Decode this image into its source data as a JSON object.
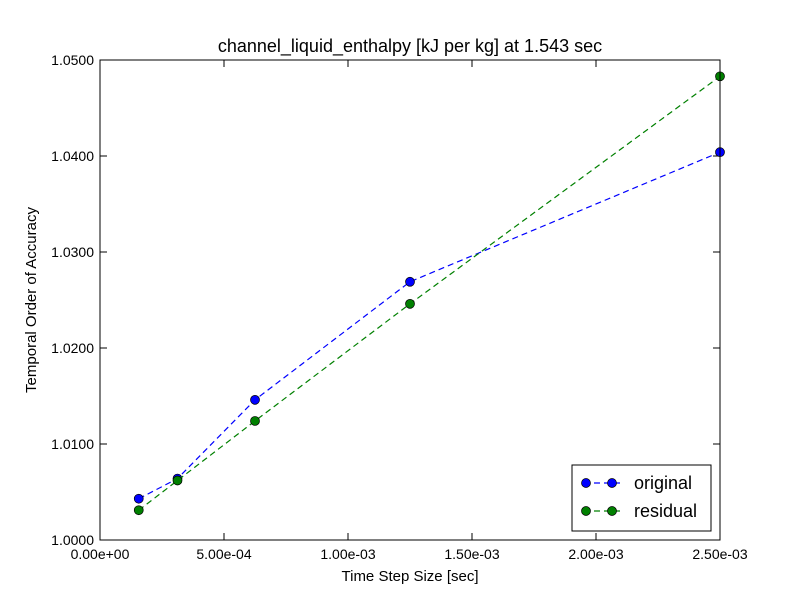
{
  "chart_data": {
    "type": "line",
    "title": "channel_liquid_enthalpy [kJ per kg] at 1.543 sec",
    "xlabel": "Time Step Size [sec]",
    "ylabel": "Temporal Order of Accuracy",
    "xlim": [
      0.0,
      0.0025
    ],
    "ylim": [
      1.0,
      1.05
    ],
    "xticks": [
      0.0,
      0.0005,
      0.001,
      0.0015,
      0.002,
      0.0025
    ],
    "xtick_labels": [
      "0.00e+00",
      "5.00e-04",
      "1.00e-03",
      "1.50e-03",
      "2.00e-03",
      "2.50e-03"
    ],
    "yticks": [
      1.0,
      1.01,
      1.02,
      1.03,
      1.04,
      1.05
    ],
    "ytick_labels": [
      "1.0000",
      "1.0100",
      "1.0200",
      "1.0300",
      "1.0400",
      "1.0500"
    ],
    "grid": false,
    "legend_position": "bottom-right",
    "x": [
      0.00015625,
      0.0003125,
      0.000625,
      0.00125,
      0.0025
    ],
    "series": [
      {
        "name": "original",
        "color": "#0000ff",
        "values": [
          1.0043,
          1.0064,
          1.0146,
          1.0269,
          1.0404
        ]
      },
      {
        "name": "residual",
        "color": "#008000",
        "values": [
          1.0031,
          1.0062,
          1.0124,
          1.0246,
          1.0483
        ]
      }
    ]
  }
}
